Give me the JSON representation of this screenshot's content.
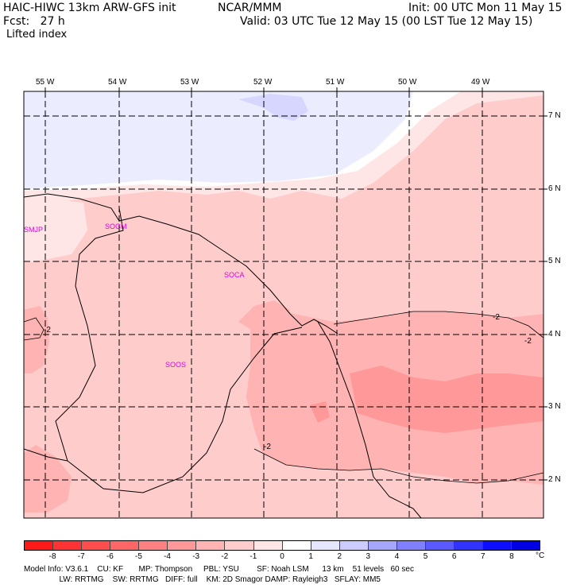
{
  "header": {
    "title_left": "HAIC-HIWC 13km ARW-GFS init",
    "org": "NCAR/MMM",
    "init": "Init: 00 UTC Mon 11 May 15",
    "fcst": "Fcst:   27 h",
    "valid": "Valid: 03 UTC Tue 12 May 15 (00 LST Tue 12 May 15)",
    "field": "Lifted index"
  },
  "axes": {
    "lon_ticks": [
      "55 W",
      "54 W",
      "53 W",
      "52 W",
      "51 W",
      "50 W",
      "49 W"
    ],
    "lat_ticks": [
      "7 N",
      "6 N",
      "5 N",
      "4 N",
      "3 N",
      "2 N"
    ]
  },
  "stations": [
    "SMJP",
    "SOGM",
    "SOCA",
    "SOOS"
  ],
  "contour_labels": [
    "-2",
    "-2",
    "-2",
    "-2"
  ],
  "colorbar": {
    "ticks": [
      "-8",
      "-7",
      "-6",
      "-5",
      "-4",
      "-3",
      "-2",
      "-1",
      "0",
      "1",
      "2",
      "3",
      "4",
      "5",
      "6",
      "7",
      "8"
    ],
    "unit": "°C",
    "colors": [
      "#ff1a1a",
      "#ff3333",
      "#ff4d4d",
      "#ff6666",
      "#ff8080",
      "#ff9999",
      "#ffb3b3",
      "#ffcccc",
      "#ffe6e6",
      "#ffffff",
      "#e6e6ff",
      "#ccccff",
      "#a6a6ff",
      "#8080ff",
      "#5959ff",
      "#3333ff",
      "#0d0dff",
      "#0000e6"
    ]
  },
  "footer": {
    "line1": "Model Info: V3.6.1    CU: KF       MP: Thompson     PBL: YSU        SF: Noah LSM      13 km    51 levels   60 sec",
    "line2": "                LW: RRTMG    SW: RRTMG   DIFF: full    KM: 2D Smagor DAMP: Rayleigh3   SFLAY: MM5"
  }
}
